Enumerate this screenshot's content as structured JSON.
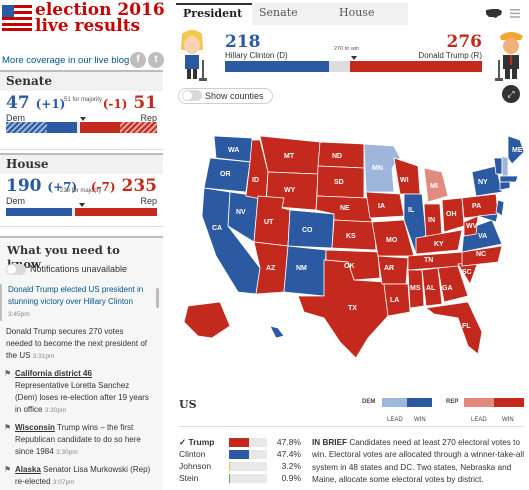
{
  "brand": {
    "title_line1": "election 2016",
    "title_line2": "live results"
  },
  "more_coverage": {
    "text": "More coverage in our live blog »"
  },
  "social": {
    "facebook_glyph": "f",
    "twitter_glyph": "t"
  },
  "senate": {
    "heading": "Senate",
    "dem_count": "47",
    "dem_change": "(+1)",
    "rep_change": "(-1)",
    "rep_count": "51",
    "majority_label": "51 for majority",
    "dem_label": "Dem",
    "rep_label": "Rep",
    "seats": {
      "total": 100,
      "dem": 47,
      "rep": 51,
      "majority": 51
    }
  },
  "house": {
    "heading": "House",
    "dem_count": "190",
    "dem_change": "(+7)",
    "rep_change": "(-7)",
    "rep_count": "235",
    "majority_label": "218 for majority",
    "dem_label": "Dem",
    "rep_label": "Rep",
    "seats": {
      "total": 435,
      "dem": 190,
      "rep": 235,
      "majority": 218
    }
  },
  "what_you_need": {
    "heading": "What you need to know",
    "toggle_label": "Notifications unavailable",
    "items": [
      {
        "text": "Donald Trump elected US president in stunning victory over Hillary Clinton",
        "time": "3:45pm",
        "highlight": true
      },
      {
        "text": "Donald Trump secures 270 votes needed to become the next president of the US",
        "time": "3:31pm",
        "highlight": false
      },
      {
        "title": "California district 46",
        "text": "Representative Loretta Sanchez (Dem) loses re-election after 19 years in office",
        "time": "3:30pm",
        "icon": "flag-icon"
      },
      {
        "title": "Wisconsin",
        "text": "Trump wins – the first Republican candidate to do so here since 1984",
        "time": "3:30pm",
        "icon": "flag-icon"
      },
      {
        "title": "Alaska",
        "text": "Senator Lisa Murkowski (Rep) re-elected",
        "time": "3:07pm",
        "icon": "flag-icon"
      }
    ]
  },
  "tabs": [
    {
      "label": "President",
      "active": true
    },
    {
      "label": "Senate",
      "active": false
    },
    {
      "label": "House",
      "active": false
    }
  ],
  "president": {
    "dem": {
      "votes": "218",
      "name": "Hillary Clinton (D)",
      "color": "#2b5aa2"
    },
    "rep": {
      "votes": "276",
      "name": "Donald Trump (R)",
      "color": "#c4291d"
    },
    "to_win_label": "270 to win",
    "electoral": {
      "total": 538,
      "dem_won": 218,
      "dem_leading": 0,
      "rep_won": 276,
      "rep_leading": 0,
      "to_win": 270
    }
  },
  "counties_toggle": {
    "label": "Show counties"
  },
  "map": {
    "colors": {
      "dem_win": "#2b5aa2",
      "dem_lead": "#9fb6dc",
      "rep_win": "#c4291d",
      "rep_lead": "#e38a80"
    },
    "state_labels": [
      "WA",
      "MT",
      "ND",
      "MN",
      "OR",
      "ID",
      "WY",
      "SD",
      "WI",
      "MI",
      "NY",
      "NV",
      "UT",
      "CO",
      "NE",
      "IA",
      "IL",
      "IN",
      "OH",
      "PA",
      "CA",
      "KS",
      "MO",
      "KY",
      "WV",
      "VA",
      "AZ",
      "NM",
      "OK",
      "AR",
      "TN",
      "NC",
      "SC",
      "TX",
      "LA",
      "MS",
      "AL",
      "GA",
      "FL",
      "AK",
      "HI",
      "ME"
    ]
  },
  "us_results": {
    "heading": "US",
    "legend": {
      "dem": "DEM",
      "rep": "REP",
      "lead": "LEAD",
      "win": "WIN"
    },
    "popular_vote": [
      {
        "name": "Trump",
        "check": "✓",
        "pct": "47.8%",
        "value": 47.8,
        "color": "#c4291d"
      },
      {
        "name": "Clinton",
        "check": "",
        "pct": "47.4%",
        "value": 47.4,
        "color": "#2b5aa2"
      },
      {
        "name": "Johnson",
        "check": "",
        "pct": "3.2%",
        "value": 3.2,
        "color": "#f4c430"
      },
      {
        "name": "Stein",
        "check": "",
        "pct": "0.9%",
        "value": 0.9,
        "color": "#6aa84f"
      }
    ],
    "brief_label": "IN BRIEF",
    "brief_text": "Candidates need at least 270 electoral votes to win. Electoral votes are allocated through a winner-take-all system in 48 states and DC. Two states, Nebraska and Maine, allocate some electoral votes by district."
  }
}
